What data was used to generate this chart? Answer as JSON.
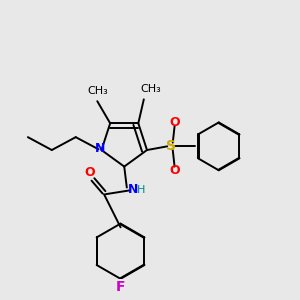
{
  "background_color": "#e8e8e8",
  "line_color": "#000000",
  "figsize": [
    3.0,
    3.0
  ],
  "dpi": 100,
  "colors": {
    "N": "#0000ff",
    "O": "#ff0000",
    "S": "#ccaa00",
    "F": "#cc00cc",
    "H": "#008888",
    "C": "#000000"
  }
}
